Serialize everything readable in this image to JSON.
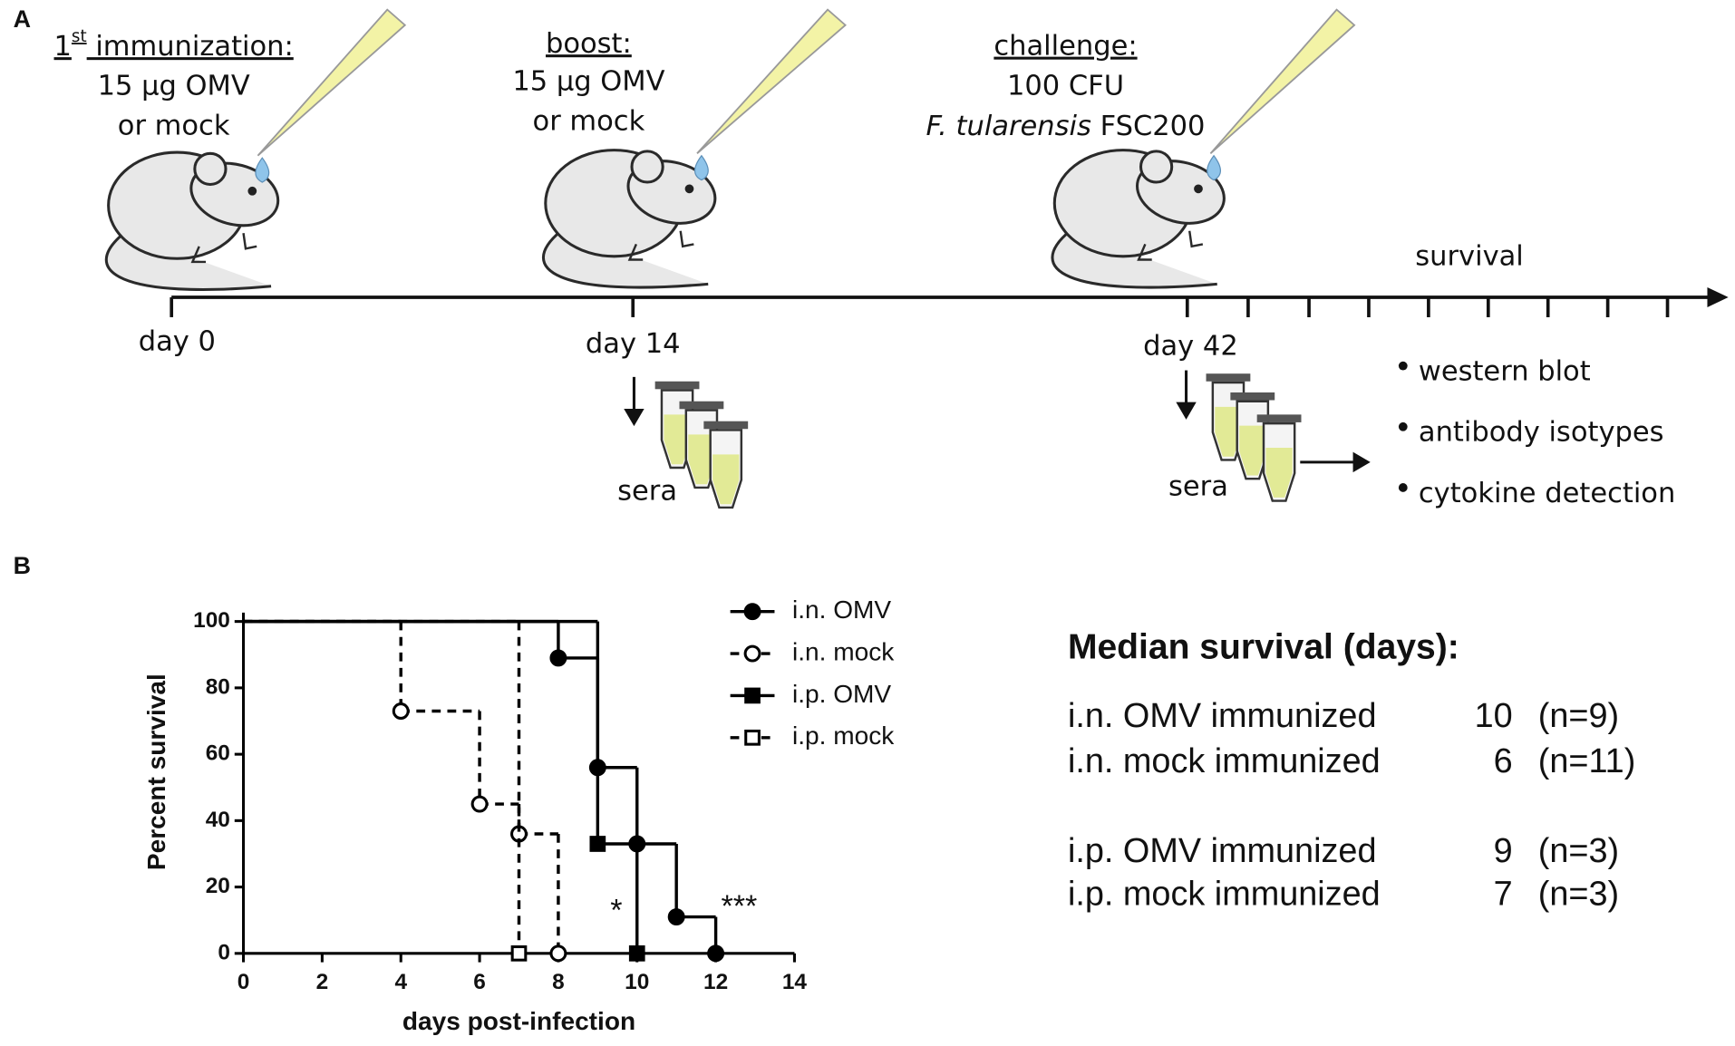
{
  "panel_a": {
    "label": "A",
    "steps": [
      {
        "heading": {
          "number": "1",
          "sup": "st",
          "text": " immunization:"
        },
        "lines": [
          "15 µg OMV",
          "or mock"
        ],
        "day": "day 0"
      },
      {
        "heading": {
          "text": "boost:"
        },
        "lines": [
          "15 µg OMV",
          "or mock"
        ],
        "day": "day 14",
        "sera": "sera"
      },
      {
        "heading": {
          "text": "challenge:"
        },
        "lines": [
          "100 CFU",
          {
            "italic": "F. tularensis",
            "text": " FSC200"
          }
        ],
        "day": "day 42",
        "sera": "sera"
      }
    ],
    "survival": "survival",
    "readouts": [
      "western blot",
      "antibody isotypes",
      "cytokine detection"
    ]
  },
  "panel_b_label": "B",
  "chart_data": {
    "type": "step",
    "xlabel": "days post-infection",
    "ylabel": "Percent survival",
    "xlim": [
      0,
      14
    ],
    "xticks": [
      0,
      2,
      4,
      6,
      8,
      10,
      12,
      14
    ],
    "ylim": [
      0,
      100
    ],
    "yticks": [
      0,
      20,
      40,
      60,
      80,
      100
    ],
    "grid": false,
    "legend": "right",
    "series": [
      {
        "name": "i.n. OMV",
        "color": "#000000",
        "dashed": false,
        "marker": "circle",
        "filled": true,
        "x": [
          0,
          8,
          9,
          10,
          11,
          12
        ],
        "values": [
          100,
          89,
          56,
          33,
          11,
          0
        ]
      },
      {
        "name": "i.n. mock",
        "color": "#000000",
        "dashed": true,
        "marker": "circle",
        "filled": false,
        "x": [
          0,
          4,
          6,
          7,
          8
        ],
        "values": [
          100,
          73,
          45,
          36,
          0
        ]
      },
      {
        "name": "i.p. OMV",
        "color": "#000000",
        "dashed": false,
        "marker": "square",
        "filled": true,
        "x": [
          0,
          9,
          10
        ],
        "values": [
          100,
          33,
          0
        ]
      },
      {
        "name": "i.p. mock",
        "color": "#000000",
        "dashed": true,
        "marker": "square",
        "filled": false,
        "x": [
          0,
          7
        ],
        "values": [
          100,
          0
        ]
      }
    ],
    "annotations": [
      "*",
      "***"
    ]
  },
  "median_survival": {
    "title": "Median survival (days):",
    "rows": [
      {
        "group": "i.n. OMV immunized",
        "median": 10,
        "n": "(n=9)"
      },
      {
        "group": "i.n. mock immunized",
        "median": 6,
        "n": "(n=11)"
      },
      {
        "group": "i.p. OMV immunized",
        "median": 9,
        "n": "(n=3)"
      },
      {
        "group": "i.p. mock immunized",
        "median": 7,
        "n": "(n=3)"
      }
    ]
  }
}
